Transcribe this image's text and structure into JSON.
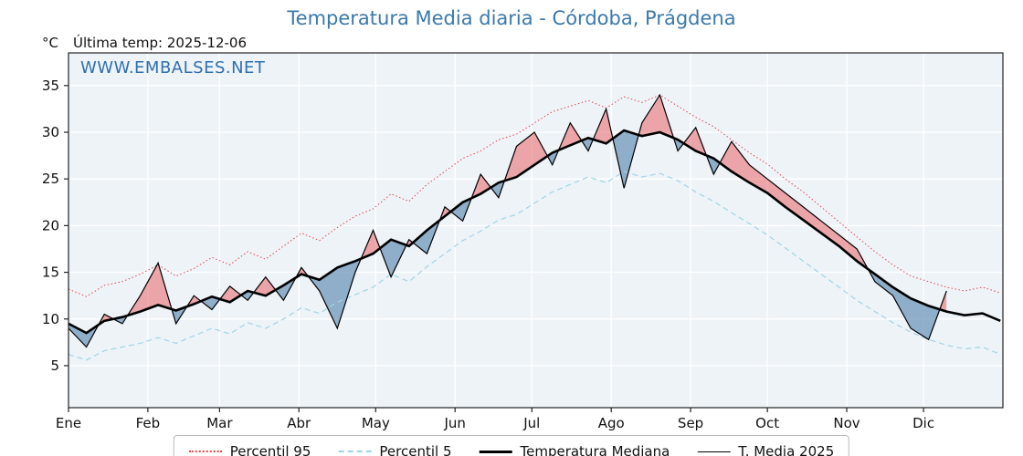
{
  "header": {
    "title": "Temperatura Media diaria - Córdoba, Prágdena",
    "unit_label": "°C",
    "last_temp_label": "Última temp: 2025-12-06",
    "watermark": "WWW.EMBALSES.NET"
  },
  "chart_data": {
    "type": "line",
    "title": "Temperatura Media diaria - Córdoba, Prágdena",
    "ylabel": "°C",
    "x_unit": "day_of_year",
    "sample_interval_days": 7,
    "months": [
      "Ene",
      "Feb",
      "Mar",
      "Abr",
      "May",
      "Jun",
      "Jul",
      "Ago",
      "Sep",
      "Oct",
      "Nov",
      "Dic"
    ],
    "month_start_days": [
      0,
      31,
      59,
      90,
      120,
      151,
      181,
      212,
      243,
      273,
      304,
      334
    ],
    "yticks": [
      5,
      10,
      15,
      20,
      25,
      30,
      35
    ],
    "ylim": [
      0.5,
      38.5
    ],
    "grid": true,
    "legend_position": "bottom",
    "colors": {
      "p95": "#e04848",
      "p5": "#9fd4e6",
      "median": "#000000",
      "t2025": "#000000",
      "fill_above": "rgba(232,88,88,0.50)",
      "fill_below": "rgba(92,136,176,0.65)",
      "plot_bg": "#eef3f8",
      "gridline": "#ffffff"
    },
    "series": [
      {
        "name": "Percentil 95",
        "style": "dotted",
        "width": 1,
        "values": [
          13.2,
          12.4,
          13.6,
          14.0,
          14.8,
          15.8,
          14.6,
          15.4,
          16.6,
          15.8,
          17.2,
          16.4,
          17.8,
          19.2,
          18.4,
          19.8,
          21.0,
          21.8,
          23.4,
          22.6,
          24.4,
          25.8,
          27.2,
          28.0,
          29.2,
          29.8,
          31.0,
          32.2,
          32.8,
          33.4,
          32.6,
          33.8,
          33.2,
          34.0,
          32.8,
          31.6,
          30.6,
          29.2,
          27.8,
          26.6,
          25.0,
          23.6,
          22.0,
          20.4,
          18.8,
          17.2,
          15.8,
          14.6,
          14.0,
          13.4,
          13.0,
          13.4,
          12.8
        ]
      },
      {
        "name": "Percentil 5",
        "style": "dashed",
        "width": 1,
        "values": [
          6.2,
          5.6,
          6.6,
          7.0,
          7.4,
          8.0,
          7.4,
          8.2,
          9.0,
          8.4,
          9.6,
          9.0,
          10.0,
          11.2,
          10.6,
          11.8,
          12.6,
          13.4,
          14.8,
          14.0,
          15.6,
          17.0,
          18.4,
          19.4,
          20.6,
          21.2,
          22.4,
          23.6,
          24.4,
          25.2,
          24.6,
          25.8,
          25.2,
          25.6,
          24.8,
          23.6,
          22.6,
          21.4,
          20.2,
          19.0,
          17.6,
          16.2,
          14.8,
          13.4,
          12.0,
          10.8,
          9.6,
          8.6,
          7.8,
          7.2,
          6.8,
          7.0,
          6.2
        ]
      },
      {
        "name": "Temperatura Mediana",
        "style": "solid",
        "width": 2.6,
        "values": [
          9.5,
          8.5,
          9.8,
          10.2,
          10.8,
          11.5,
          10.9,
          11.6,
          12.4,
          11.8,
          13.0,
          12.5,
          13.6,
          14.8,
          14.2,
          15.5,
          16.2,
          17.0,
          18.5,
          17.8,
          19.5,
          21.0,
          22.5,
          23.4,
          24.6,
          25.2,
          26.5,
          27.8,
          28.6,
          29.4,
          28.8,
          30.2,
          29.6,
          30.0,
          29.2,
          28.0,
          27.2,
          25.8,
          24.6,
          23.5,
          22.0,
          20.6,
          19.2,
          17.8,
          16.2,
          14.8,
          13.4,
          12.2,
          11.4,
          10.8,
          10.4,
          10.6,
          9.8
        ]
      },
      {
        "name": "T. Media 2025",
        "style": "solid",
        "width": 1.2,
        "values": [
          9.0,
          7.0,
          10.5,
          9.5,
          12.5,
          16.0,
          9.5,
          12.5,
          11.0,
          13.5,
          12.0,
          14.5,
          12.0,
          15.5,
          13.0,
          9.0,
          15.0,
          19.5,
          14.5,
          18.5,
          17.0,
          22.0,
          20.5,
          25.5,
          23.0,
          28.5,
          30.0,
          26.5,
          31.0,
          28.0,
          32.5,
          24.0,
          31.0,
          34.0,
          28.0,
          30.5,
          25.5,
          29.0,
          26.5,
          25.0,
          23.5,
          22.0,
          20.5,
          19.0,
          17.5,
          14.0,
          12.5,
          9.0,
          7.8,
          13.0,
          null,
          null,
          null
        ]
      }
    ]
  }
}
